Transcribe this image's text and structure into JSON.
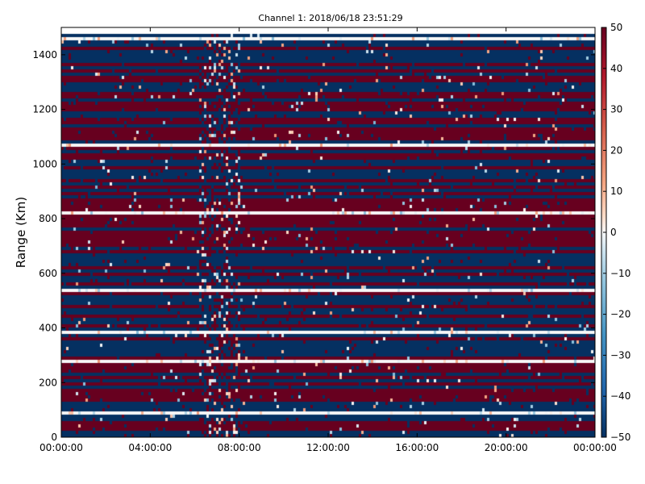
{
  "chart_data": {
    "type": "heatmap",
    "title": "Channel 1: 2018/06/18 23:51:29",
    "xlabel": "",
    "ylabel": "Range (Km)",
    "x_ticks": [
      "00:00:00",
      "04:00:00",
      "08:00:00",
      "12:00:00",
      "16:00:00",
      "20:00:00",
      "00:00:00"
    ],
    "x_range_hours": [
      0,
      24
    ],
    "y_ticks": [
      0,
      200,
      400,
      600,
      800,
      1000,
      1200,
      1400
    ],
    "ylim": [
      0,
      1500
    ],
    "colorbar": {
      "ticks": [
        50,
        40,
        30,
        20,
        10,
        0,
        -10,
        -20,
        -30,
        -40,
        -50
      ],
      "range": [
        -50,
        50
      ],
      "colormap": "RdBu_r",
      "low_color": "#053061",
      "mid_color": "#f7f7f7",
      "high_color": "#67001f"
    },
    "grid": false,
    "pattern": "horizontal bands alternating saturated red (~+50) and blue (~-50) across all range gates; a noisy disturbed region between about 06:00 and 08:00"
  }
}
